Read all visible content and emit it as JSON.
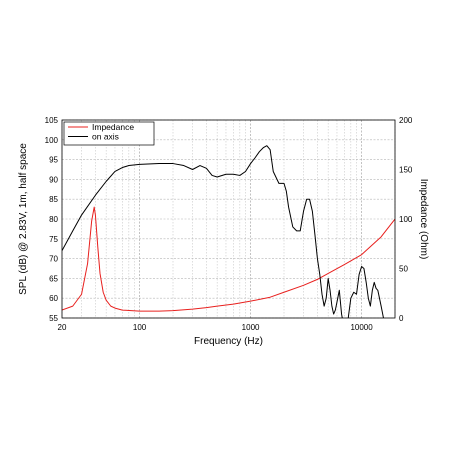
{
  "chart_data": {
    "type": "line",
    "xlabel": "Frequency (Hz)",
    "ylabel": "SPL (dB) @ 2.83V, 1m, half space",
    "ylabel_right": "Impedance (Ohm)",
    "x_scale": "log",
    "xlim": [
      20,
      20000
    ],
    "ylim": [
      55,
      105
    ],
    "ylim_right": [
      0,
      200
    ],
    "grid": true,
    "legend_position": "top-left",
    "x_ticks": [
      "20",
      "100",
      "1000",
      "10000"
    ],
    "y_ticks": [
      "55",
      "60",
      "65",
      "70",
      "75",
      "80",
      "85",
      "90",
      "95",
      "100",
      "105"
    ],
    "y_ticks_right": [
      "0",
      "50",
      "100",
      "150",
      "200"
    ],
    "series": [
      {
        "name": "Impedance",
        "axis": "right",
        "color": "#e8201e",
        "x": [
          20,
          25,
          30,
          34,
          37,
          39,
          40,
          42,
          44,
          47,
          50,
          55,
          60,
          70,
          100,
          150,
          200,
          300,
          400,
          500,
          700,
          1000,
          1500,
          2000,
          3000,
          4000,
          5000,
          7000,
          10000,
          15000,
          20000
        ],
        "y": [
          8,
          12,
          24,
          55,
          98,
          112,
          104,
          72,
          45,
          26,
          18,
          12,
          10,
          8,
          7,
          7,
          7.5,
          9,
          10.5,
          12,
          14,
          17,
          21,
          26,
          33,
          39,
          45,
          54,
          64,
          82,
          100
        ]
      },
      {
        "name": "on axis",
        "axis": "left",
        "color": "#000000",
        "x": [
          20,
          25,
          30,
          40,
          50,
          60,
          70,
          80,
          100,
          150,
          200,
          250,
          300,
          350,
          400,
          450,
          500,
          600,
          700,
          800,
          900,
          1000,
          1100,
          1200,
          1300,
          1400,
          1500,
          1600,
          1800,
          2000,
          2100,
          2200,
          2400,
          2600,
          2800,
          3000,
          3200,
          3400,
          3600,
          3800,
          4000,
          4200,
          4400,
          4600,
          4800,
          5000,
          5200,
          5400,
          5600,
          5800,
          6000,
          6300,
          6600,
          7000,
          7500,
          8000,
          8500,
          9000,
          9500,
          10000,
          10500,
          11000,
          11500,
          12000,
          12500,
          13000,
          13500,
          14000,
          15000,
          16000,
          17000
        ],
        "y": [
          72,
          77,
          81,
          86,
          89.5,
          92,
          93,
          93.5,
          93.8,
          94,
          94,
          93.5,
          92.5,
          93.5,
          92.8,
          91,
          90.6,
          91.3,
          91.3,
          91,
          92,
          94,
          95.5,
          97,
          98,
          98.5,
          97.5,
          92,
          89,
          89,
          87,
          83,
          78,
          77,
          77,
          82,
          85,
          85,
          82,
          76,
          70,
          66,
          61,
          58,
          60,
          65,
          62,
          58,
          56,
          57,
          59,
          62,
          56,
          52,
          54,
          60,
          61.5,
          61,
          66,
          68,
          67.5,
          64,
          60,
          58,
          62,
          64,
          62.5,
          62,
          58,
          54,
          50
        ]
      }
    ]
  }
}
